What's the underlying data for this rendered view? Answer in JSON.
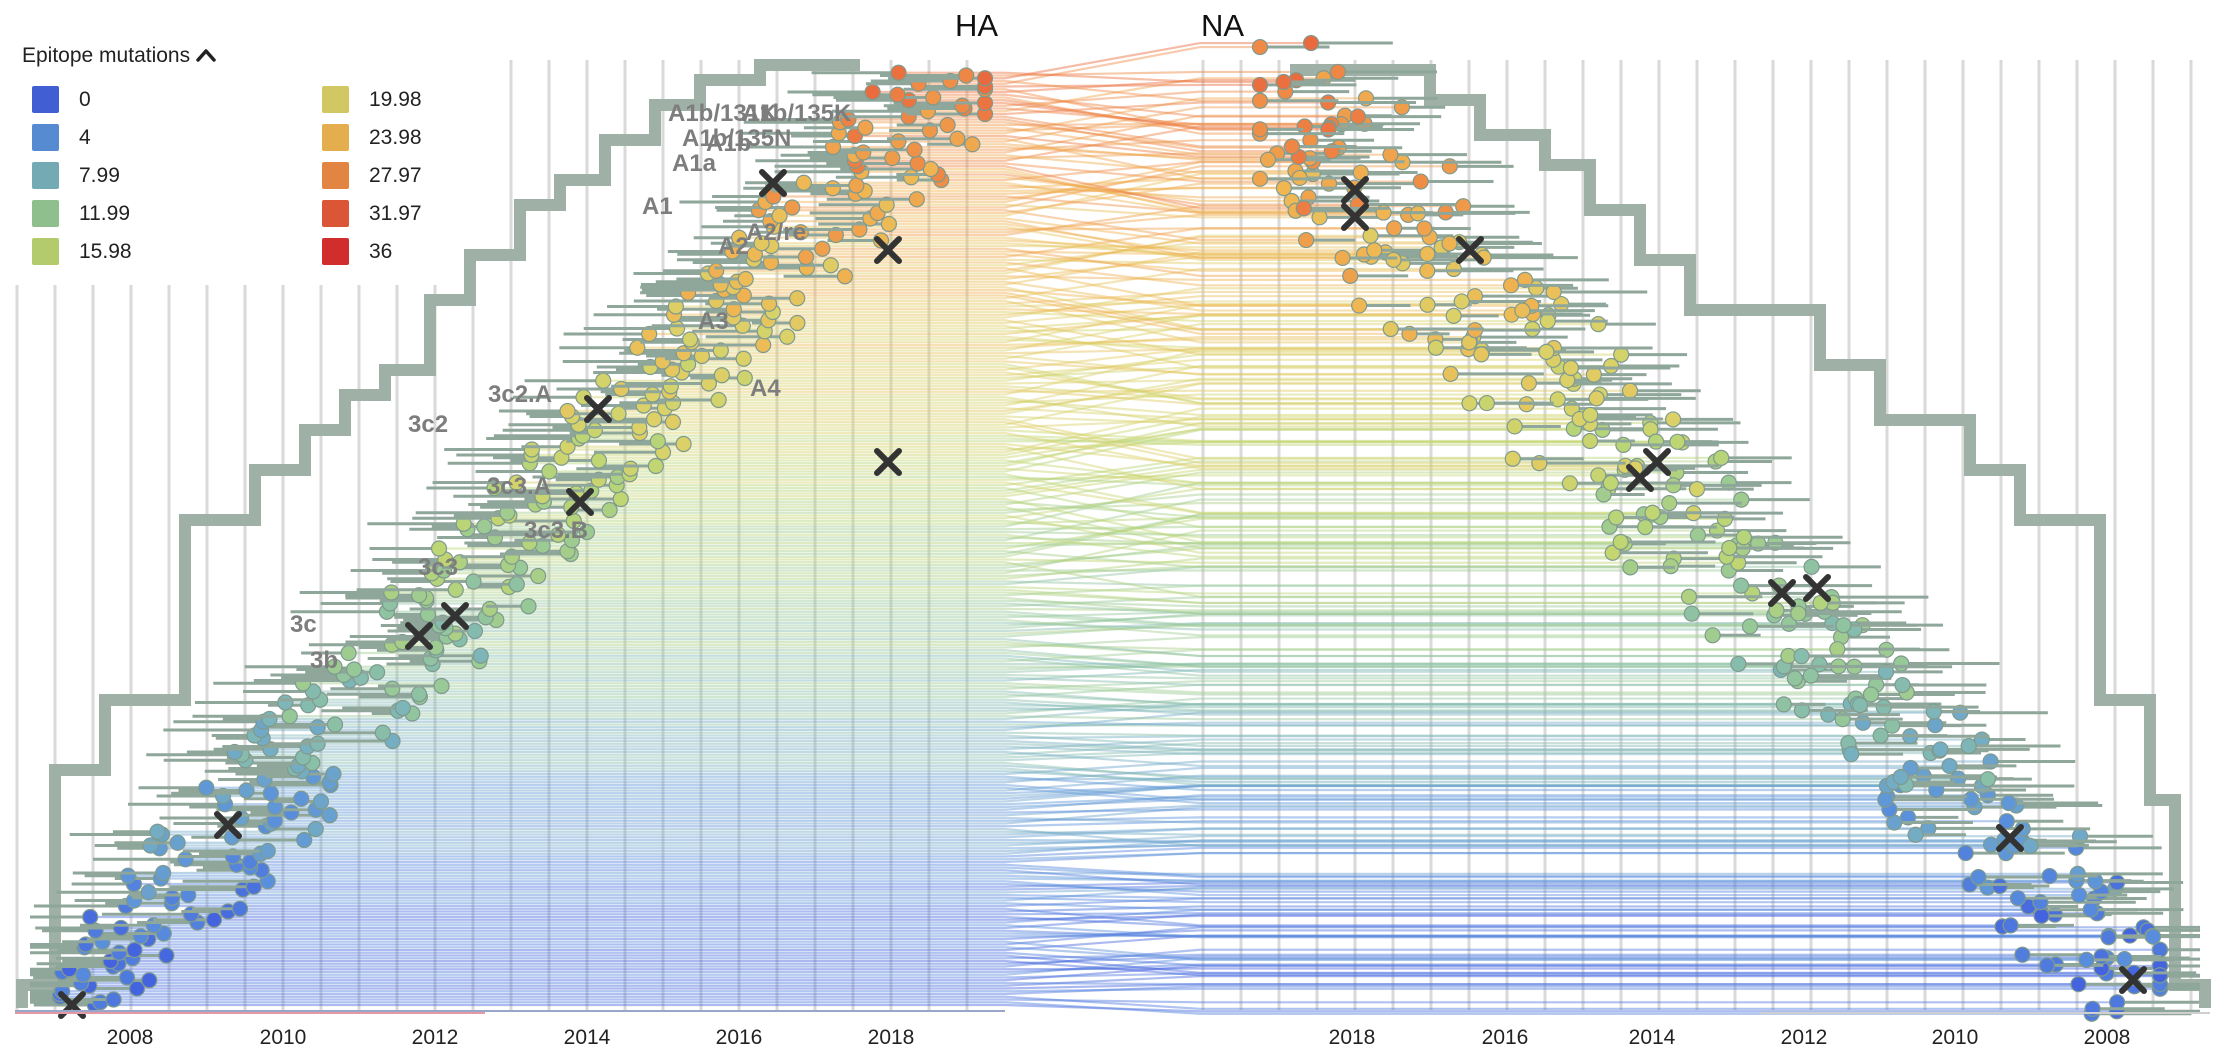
{
  "trees": {
    "left_title": "HA",
    "right_title": "NA"
  },
  "legend": {
    "title": "Epitope mutations",
    "toggle_icon": "chevron-up-icon",
    "items": [
      {
        "label": "0",
        "color": "#4463de"
      },
      {
        "label": "4",
        "color": "#5b92dc"
      },
      {
        "label": "7.99",
        "color": "#7ab3bd"
      },
      {
        "label": "11.99",
        "color": "#98c996"
      },
      {
        "label": "15.98",
        "color": "#bdd673"
      },
      {
        "label": "19.98",
        "color": "#dcd168"
      },
      {
        "label": "23.98",
        "color": "#f0b652"
      },
      {
        "label": "27.97",
        "color": "#ef8c46"
      },
      {
        "label": "31.97",
        "color": "#e75a3a"
      },
      {
        "label": "36",
        "color": "#dc2f2f"
      }
    ]
  },
  "clade_labels": [
    "A1b/131K",
    "A1b/135K",
    "A1b/135N",
    "A1b",
    "A1a",
    "A1",
    "A2/re",
    "A2",
    "A3",
    "A4",
    "3c2.A",
    "3c2",
    "3c3.A",
    "3c3.B",
    "3c3",
    "3c",
    "3b"
  ],
  "ha_axis": {
    "ticks": [
      "2008",
      "2010",
      "2012",
      "2014",
      "2016",
      "2018"
    ]
  },
  "na_axis": {
    "ticks": [
      "2018",
      "2016",
      "2014",
      "2012",
      "2010",
      "2008"
    ]
  },
  "colors": {
    "branch": "#9fb1a6",
    "mutation_marker": "#333333",
    "grid": "#dddddd",
    "axis_accent": "#e39aa6"
  }
}
